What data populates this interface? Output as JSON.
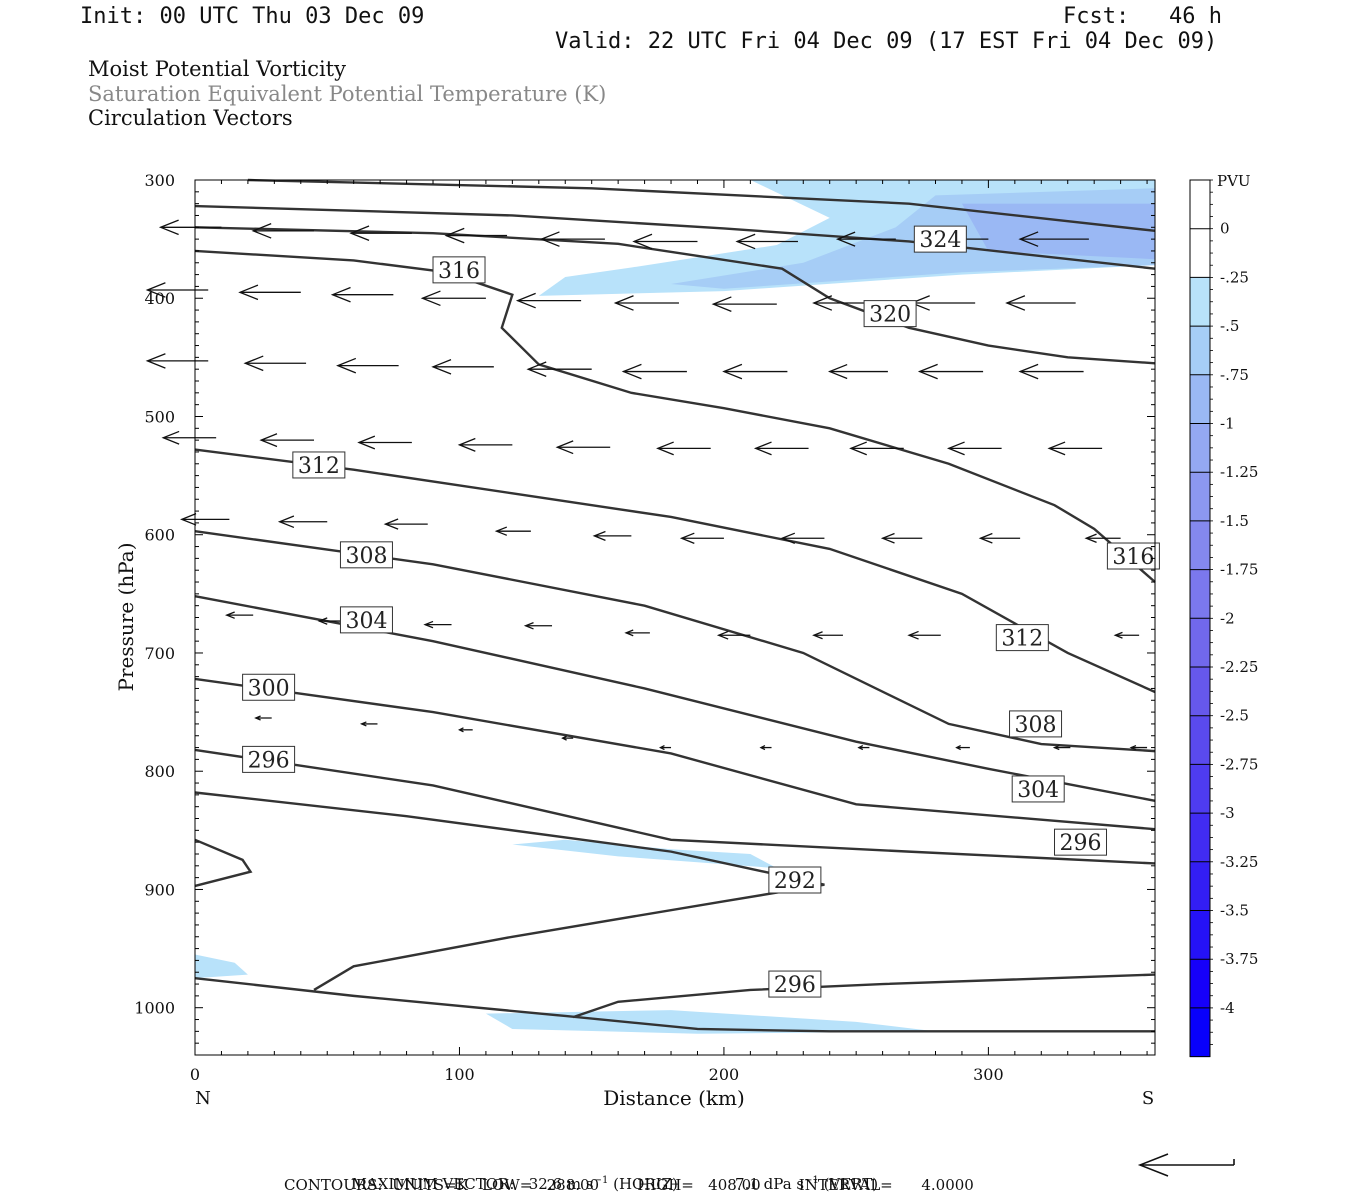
{
  "header": {
    "init": "Init: 00 UTC Thu 03 Dec 09",
    "fcst": "Fcst:   46 h",
    "valid": "Valid: 22 UTC Fri 04 Dec 09 (17 EST Fri 04 Dec 09)"
  },
  "fields": {
    "shaded": "Moist Potential Vorticity",
    "contour": "Saturation Equivalent Potential Temperature (K)",
    "vectors": "Circulation Vectors"
  },
  "colors": {
    "contour": "#333333",
    "shade_025": "#b8e2fa",
    "shade_05": "#a6cdf6",
    "shade_075": "#9ab8f4"
  },
  "footer": {
    "max_vector_label": "MAXIMUM VECTOR:",
    "horiz": "32.6 m s",
    "horiz_unit": "(HORIZ)",
    "vert": "7.1 dPa s",
    "vert_unit": "(VERT)",
    "exp": "−1",
    "contours": "CONTOURS:  UNITS=K   LOW=   288.00        HIGH=   408.00        INTERVAL=      4.0000"
  },
  "chart_data": {
    "type": "cross-section",
    "xlabel": "Distance (km)",
    "ylabel": "Pressure (hPa)",
    "xlim": [
      0,
      363
    ],
    "ylim": [
      1040,
      300
    ],
    "x_ticks": [
      0,
      100,
      200,
      300
    ],
    "y_ticks": [
      300,
      400,
      500,
      600,
      700,
      800,
      900,
      1000
    ],
    "x_end_labels": {
      "left": "N",
      "right": "S"
    },
    "colorbar": {
      "unit": "PVU",
      "levels": [
        "0",
        "-.25",
        "-.5",
        "-.75",
        "-1",
        "-1.25",
        "-1.5",
        "-1.75",
        "-2",
        "-2.25",
        "-2.5",
        "-2.75",
        "-3",
        "-3.25",
        "-3.5",
        "-3.75",
        "-4"
      ],
      "colors": [
        "#ffffff",
        "#ffffff",
        "#b8e2fa",
        "#a6cdf6",
        "#9ab8f4",
        "#94a8f2",
        "#8c98f0",
        "#8488ee",
        "#7b78ee",
        "#7168ec",
        "#6658ec",
        "#5a4aee",
        "#4e3cf0",
        "#412cf2",
        "#331ef4",
        "#2512f6",
        "#1600fa",
        "#0800fc"
      ]
    },
    "contours": [
      {
        "value": "324",
        "points": [
          [
            20,
            300
          ],
          [
            150,
            307
          ],
          [
            270,
            320
          ],
          [
            363,
            343
          ]
        ]
      },
      {
        "value": "324",
        "label_at": [
          272,
          350
        ],
        "points": [
          [
            0,
            322
          ],
          [
            120,
            330
          ],
          [
            200,
            341
          ],
          [
            270,
            352
          ],
          [
            363,
            375
          ]
        ]
      },
      {
        "value": "320",
        "label_at": [
          250,
          413
        ],
        "points": [
          [
            0,
            340
          ],
          [
            90,
            345
          ],
          [
            160,
            354
          ],
          [
            222,
            375
          ],
          [
            240,
            400
          ],
          [
            270,
            425
          ],
          [
            300,
            440
          ],
          [
            330,
            450
          ],
          [
            363,
            455
          ]
        ]
      },
      {
        "value": "316",
        "label_at": [
          90,
          376
        ],
        "points": [
          [
            0,
            360
          ],
          [
            60,
            368
          ],
          [
            95,
            378
          ],
          [
            120,
            397
          ],
          [
            116,
            425
          ],
          [
            130,
            456
          ],
          [
            165,
            480
          ],
          [
            200,
            493
          ],
          [
            240,
            510
          ],
          [
            285,
            540
          ],
          [
            325,
            575
          ],
          [
            340,
            595
          ],
          [
            363,
            640
          ]
        ]
      },
      {
        "value": "316",
        "label_at": [
          345,
          618
        ],
        "points": []
      },
      {
        "value": "312",
        "label_at": [
          37,
          541
        ],
        "points": [
          [
            0,
            528
          ],
          [
            60,
            545
          ],
          [
            120,
            565
          ],
          [
            180,
            585
          ],
          [
            240,
            612
          ],
          [
            290,
            650
          ],
          [
            330,
            700
          ],
          [
            363,
            733
          ]
        ]
      },
      {
        "value": "312",
        "label_at": [
          303,
          687
        ],
        "points": []
      },
      {
        "value": "308",
        "label_at": [
          55,
          617
        ],
        "points": [
          [
            0,
            597
          ],
          [
            90,
            625
          ],
          [
            170,
            660
          ],
          [
            230,
            700
          ],
          [
            285,
            760
          ],
          [
            320,
            777
          ],
          [
            363,
            783
          ]
        ]
      },
      {
        "value": "308",
        "label_at": [
          308,
          760
        ],
        "points": []
      },
      {
        "value": "304",
        "label_at": [
          55,
          672
        ],
        "points": [
          [
            0,
            652
          ],
          [
            90,
            690
          ],
          [
            170,
            730
          ],
          [
            250,
            775
          ],
          [
            300,
            798
          ],
          [
            363,
            825
          ]
        ]
      },
      {
        "value": "304",
        "label_at": [
          309,
          815
        ],
        "points": []
      },
      {
        "value": "300",
        "label_at": [
          18,
          729
        ],
        "points": [
          [
            0,
            722
          ],
          [
            90,
            750
          ],
          [
            180,
            785
          ],
          [
            250,
            828
          ],
          [
            363,
            849
          ]
        ]
      },
      {
        "value": "296",
        "label_at": [
          18,
          790
        ],
        "points": [
          [
            0,
            782
          ],
          [
            90,
            812
          ],
          [
            180,
            858
          ],
          [
            270,
            868
          ],
          [
            363,
            878
          ]
        ]
      },
      {
        "value": "296",
        "label_at": [
          325,
          860
        ],
        "points": []
      },
      {
        "value": "292",
        "label_at": [
          217,
          892
        ],
        "points": [
          [
            0,
            818
          ],
          [
            80,
            838
          ],
          [
            180,
            868
          ],
          [
            238,
            896
          ],
          [
            200,
            910
          ],
          [
            120,
            940
          ],
          [
            60,
            965
          ],
          [
            45,
            985
          ]
        ]
      },
      {
        "value": "292",
        "label_at": [
          0,
          0
        ],
        "points": [
          [
            0,
            858
          ],
          [
            18,
            875
          ],
          [
            21,
            885
          ],
          [
            0,
            897
          ]
        ]
      },
      {
        "value": "296",
        "label_at": [
          217,
          980
        ],
        "points": [
          [
            143,
            1008
          ],
          [
            160,
            995
          ],
          [
            210,
            985
          ],
          [
            260,
            980
          ],
          [
            363,
            972
          ]
        ]
      },
      {
        "value": "",
        "points": [
          [
            0,
            975
          ],
          [
            60,
            990
          ],
          [
            140,
            1007
          ],
          [
            190,
            1018
          ],
          [
            240,
            1020
          ],
          [
            363,
            1020
          ]
        ]
      }
    ],
    "labels": [
      {
        "text": "324",
        "x": 272,
        "y": 350
      },
      {
        "text": "320",
        "x": 253,
        "y": 413
      },
      {
        "text": "316",
        "x": 90,
        "y": 376
      },
      {
        "text": "316",
        "x": 345,
        "y": 618
      },
      {
        "text": "312",
        "x": 37,
        "y": 541
      },
      {
        "text": "312",
        "x": 303,
        "y": 687
      },
      {
        "text": "308",
        "x": 55,
        "y": 617
      },
      {
        "text": "308",
        "x": 308,
        "y": 760
      },
      {
        "text": "304",
        "x": 55,
        "y": 672
      },
      {
        "text": "304",
        "x": 309,
        "y": 815
      },
      {
        "text": "300",
        "x": 18,
        "y": 729
      },
      {
        "text": "296",
        "x": 18,
        "y": 790
      },
      {
        "text": "296",
        "x": 325,
        "y": 860
      },
      {
        "text": "292",
        "x": 217,
        "y": 892
      },
      {
        "text": "296",
        "x": 217,
        "y": 980
      }
    ],
    "pv_shading": [
      {
        "level": "-.25",
        "points": [
          [
            210,
            300
          ],
          [
            363,
            300
          ],
          [
            363,
            372
          ],
          [
            290,
            380
          ],
          [
            200,
            394
          ],
          [
            130,
            398
          ],
          [
            140,
            382
          ],
          [
            165,
            374
          ],
          [
            220,
            355
          ],
          [
            240,
            332
          ]
        ]
      },
      {
        "level": "-.5",
        "points": [
          [
            280,
            313
          ],
          [
            363,
            307
          ],
          [
            363,
            372
          ],
          [
            290,
            378
          ],
          [
            200,
            392
          ],
          [
            180,
            388
          ],
          [
            230,
            370
          ],
          [
            265,
            340
          ]
        ]
      },
      {
        "level": "-.75",
        "points": [
          [
            290,
            320
          ],
          [
            363,
            320
          ],
          [
            363,
            367
          ],
          [
            300,
            360
          ]
        ]
      },
      {
        "level": "-.25",
        "points": [
          [
            120,
            862
          ],
          [
            160,
            872
          ],
          [
            220,
            882
          ],
          [
            210,
            870
          ],
          [
            180,
            866
          ],
          [
            140,
            858
          ]
        ]
      },
      {
        "level": "-.25",
        "points": [
          [
            0,
            955
          ],
          [
            15,
            962
          ],
          [
            20,
            972
          ],
          [
            0,
            975
          ]
        ]
      },
      {
        "level": "-.25",
        "points": [
          [
            110,
            1005
          ],
          [
            180,
            1002
          ],
          [
            250,
            1012
          ],
          [
            280,
            1020
          ],
          [
            190,
            1022
          ],
          [
            120,
            1018
          ]
        ]
      }
    ],
    "vectors": [
      {
        "x": 10,
        "p": 340,
        "dx": -23
      },
      {
        "x": 45,
        "p": 343,
        "dx": -23
      },
      {
        "x": 82,
        "p": 345,
        "dx": -23
      },
      {
        "x": 118,
        "p": 347,
        "dx": -23
      },
      {
        "x": 155,
        "p": 350,
        "dx": -24
      },
      {
        "x": 190,
        "p": 352,
        "dx": -24
      },
      {
        "x": 228,
        "p": 352,
        "dx": -23
      },
      {
        "x": 265,
        "p": 350,
        "dx": -22
      },
      {
        "x": 300,
        "p": 350,
        "dx": -24
      },
      {
        "x": 338,
        "p": 350,
        "dx": -26
      },
      {
        "x": 5,
        "p": 393,
        "dx": -23
      },
      {
        "x": 40,
        "p": 395,
        "dx": -23
      },
      {
        "x": 75,
        "p": 397,
        "dx": -23
      },
      {
        "x": 110,
        "p": 400,
        "dx": -24
      },
      {
        "x": 146,
        "p": 402,
        "dx": -24
      },
      {
        "x": 183,
        "p": 404,
        "dx": -24
      },
      {
        "x": 220,
        "p": 405,
        "dx": -24
      },
      {
        "x": 258,
        "p": 404,
        "dx": -24
      },
      {
        "x": 295,
        "p": 404,
        "dx": -24
      },
      {
        "x": 333,
        "p": 404,
        "dx": -26
      },
      {
        "x": 5,
        "p": 453,
        "dx": -23
      },
      {
        "x": 42,
        "p": 455,
        "dx": -23
      },
      {
        "x": 77,
        "p": 457,
        "dx": -23
      },
      {
        "x": 113,
        "p": 458,
        "dx": -23
      },
      {
        "x": 150,
        "p": 460,
        "dx": -24
      },
      {
        "x": 186,
        "p": 462,
        "dx": -24
      },
      {
        "x": 224,
        "p": 462,
        "dx": -24
      },
      {
        "x": 262,
        "p": 462,
        "dx": -22
      },
      {
        "x": 298,
        "p": 462,
        "dx": -24
      },
      {
        "x": 336,
        "p": 462,
        "dx": -24
      },
      {
        "x": 8,
        "p": 518,
        "dx": -20
      },
      {
        "x": 45,
        "p": 520,
        "dx": -20
      },
      {
        "x": 82,
        "p": 522,
        "dx": -20
      },
      {
        "x": 120,
        "p": 524,
        "dx": -20
      },
      {
        "x": 157,
        "p": 526,
        "dx": -20
      },
      {
        "x": 195,
        "p": 527,
        "dx": -20
      },
      {
        "x": 232,
        "p": 527,
        "dx": -20
      },
      {
        "x": 268,
        "p": 527,
        "dx": -20
      },
      {
        "x": 305,
        "p": 527,
        "dx": -20
      },
      {
        "x": 343,
        "p": 527,
        "dx": -20
      },
      {
        "x": 13,
        "p": 587,
        "dx": -18
      },
      {
        "x": 50,
        "p": 589,
        "dx": -18
      },
      {
        "x": 88,
        "p": 591,
        "dx": -16
      },
      {
        "x": 127,
        "p": 597,
        "dx": -13
      },
      {
        "x": 165,
        "p": 601,
        "dx": -14
      },
      {
        "x": 200,
        "p": 603,
        "dx": -16
      },
      {
        "x": 238,
        "p": 603,
        "dx": -16
      },
      {
        "x": 275,
        "p": 603,
        "dx": -15
      },
      {
        "x": 312,
        "p": 603,
        "dx": -15
      },
      {
        "x": 350,
        "p": 603,
        "dx": -13
      },
      {
        "x": 22,
        "p": 668,
        "dx": -10
      },
      {
        "x": 57,
        "p": 673,
        "dx": -10
      },
      {
        "x": 97,
        "p": 676,
        "dx": -10
      },
      {
        "x": 135,
        "p": 677,
        "dx": -10
      },
      {
        "x": 172,
        "p": 683,
        "dx": -9
      },
      {
        "x": 210,
        "p": 685,
        "dx": -12
      },
      {
        "x": 245,
        "p": 685,
        "dx": -11
      },
      {
        "x": 282,
        "p": 685,
        "dx": -12
      },
      {
        "x": 320,
        "p": 685,
        "dx": -9
      },
      {
        "x": 357,
        "p": 685,
        "dx": -9
      },
      {
        "x": 29,
        "p": 755,
        "dx": -6
      },
      {
        "x": 69,
        "p": 760,
        "dx": -6
      },
      {
        "x": 105,
        "p": 765,
        "dx": -5
      },
      {
        "x": 143,
        "p": 772,
        "dx": -4
      },
      {
        "x": 180,
        "p": 780,
        "dx": -4
      },
      {
        "x": 218,
        "p": 780,
        "dx": -4
      },
      {
        "x": 255,
        "p": 780,
        "dx": -4
      },
      {
        "x": 293,
        "p": 780,
        "dx": -5
      },
      {
        "x": 331,
        "p": 780,
        "dx": -6
      },
      {
        "x": 360,
        "p": 780,
        "dx": -6
      }
    ]
  }
}
